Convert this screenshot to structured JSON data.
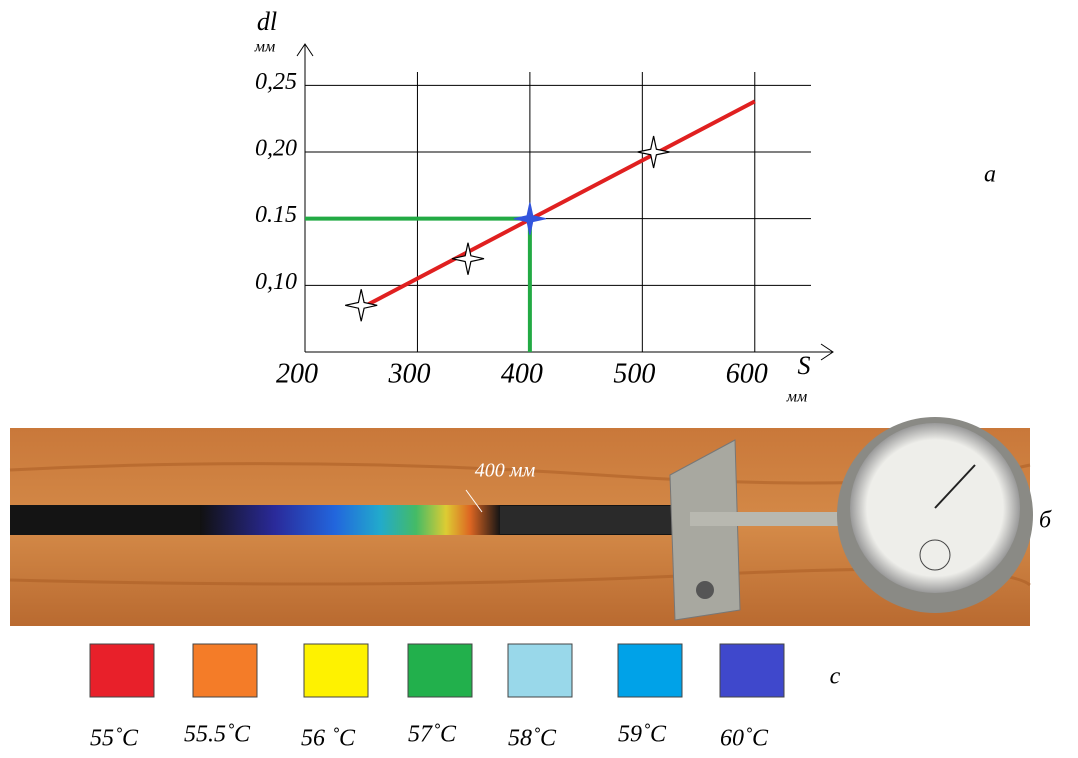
{
  "chart_data": {
    "type": "line",
    "y_label": "dl",
    "y_unit": "мм",
    "x_label": "S",
    "x_unit": "мм",
    "panel": "а",
    "xlim": [
      200,
      650
    ],
    "ylim": [
      0.05,
      0.26
    ],
    "xticks": [
      200,
      300,
      400,
      500,
      600
    ],
    "yticks": [
      {
        "value": 0.1,
        "label": "0,10"
      },
      {
        "value": 0.15,
        "label": "0.15"
      },
      {
        "value": 0.2,
        "label": "0,20"
      },
      {
        "value": 0.25,
        "label": "0,25"
      }
    ],
    "grid": true,
    "series": [
      {
        "color": "#22aa44",
        "x": [
          200,
          400,
          400
        ],
        "values": [
          0.15,
          0.15,
          0.05
        ]
      },
      {
        "color": "#e02020",
        "x": [
          250,
          600
        ],
        "values": [
          0.083,
          0.238
        ]
      }
    ],
    "points": {
      "x": [
        250,
        345,
        400,
        510
      ],
      "values": [
        0.085,
        0.12,
        0.15,
        0.2
      ],
      "colors": [
        "#ffffff",
        "#ffffff",
        "#3355dd",
        "#ffffff"
      ]
    }
  },
  "photo": {
    "annotation": "400 мм",
    "panel": "б"
  },
  "scale": {
    "panel": "с",
    "items": [
      {
        "color": "#e8202a",
        "label": "55˚C"
      },
      {
        "color": "#f47c28",
        "label": "55.5˚C"
      },
      {
        "color": "#fef200",
        "label": "56 ˚C"
      },
      {
        "color": "#22b04c",
        "label": "57˚C"
      },
      {
        "color": "#99d8ea",
        "label": "58˚C"
      },
      {
        "color": "#00a2e8",
        "label": "59˚C"
      },
      {
        "color": "#3f48cc",
        "label": "60˚C"
      }
    ]
  }
}
